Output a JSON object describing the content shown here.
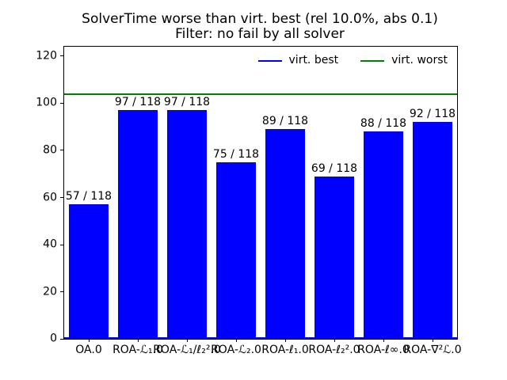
{
  "figure": {
    "title_line1": "SolverTime worse than virt. best (rel 10.0%, abs 0.1)",
    "title_line2": "Filter: no fail by all solver"
  },
  "legend": {
    "items": [
      {
        "label": "virt. best",
        "color": "#0000ff"
      },
      {
        "label": "virt. worst",
        "color": "#008000"
      }
    ]
  },
  "chart_data": {
    "type": "bar",
    "title": "SolverTime worse than virt. best (rel 10.0%, abs 0.1)",
    "subtitle": "Filter: no fail by all solver",
    "categories": [
      "OA.0",
      "ROA-ℒ₁.0",
      "ROA-ℒ₁/ℓ₂².0",
      "ROA-ℒ₂.0",
      "ROA-ℓ₁.0",
      "ROA-ℓ₂².0",
      "ROA-ℓ∞.0",
      "ROA-∇²ℒ.0"
    ],
    "values": [
      57,
      97,
      97,
      75,
      89,
      69,
      88,
      92
    ],
    "bar_labels": [
      "57 / 118",
      "97 / 118",
      "97 / 118",
      "75 / 118",
      "89 / 118",
      "69 / 118",
      "88 / 118",
      "92 / 118"
    ],
    "bar_color": "#0000ff",
    "hlines": [
      {
        "label": "virt. best",
        "value": 0,
        "color": "#0000ff"
      },
      {
        "label": "virt. worst",
        "value": 104,
        "color": "#008000"
      }
    ],
    "legend": [
      "virt. best",
      "virt. worst"
    ],
    "legend_position": "upper right, horizontal, no frame",
    "xlabel": "",
    "ylabel": "",
    "ylim": [
      0,
      124
    ],
    "yticks": [
      0,
      20,
      40,
      60,
      80,
      100,
      120
    ],
    "grid": false,
    "background": "#ffffff"
  }
}
